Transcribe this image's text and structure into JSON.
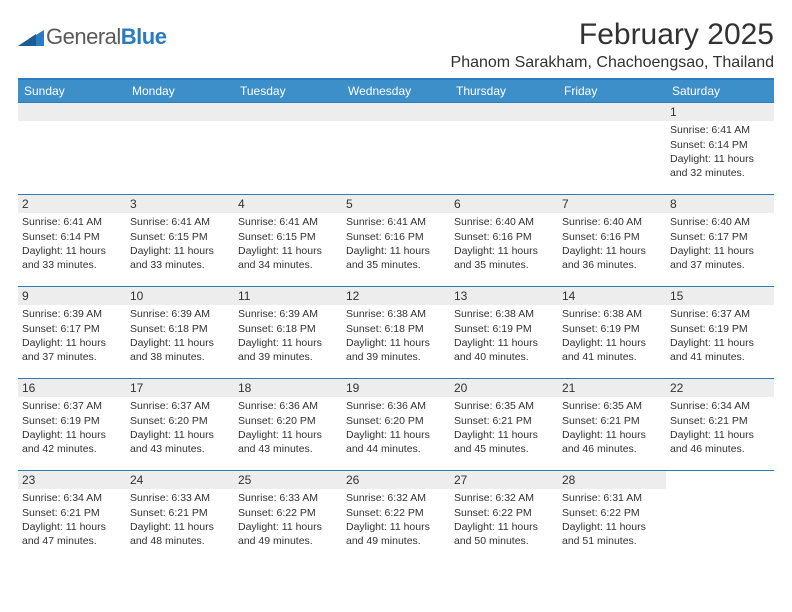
{
  "logo": {
    "word1": "General",
    "word2": "Blue"
  },
  "header": {
    "title": "February 2025",
    "location": "Phanom Sarakham, Chachoengsao, Thailand"
  },
  "colors": {
    "accent": "#3d8fc9",
    "rule": "#2b7bbf",
    "bar": "#ededed",
    "text": "#323232"
  },
  "weekdays": [
    "Sunday",
    "Monday",
    "Tuesday",
    "Wednesday",
    "Thursday",
    "Friday",
    "Saturday"
  ],
  "weeks": [
    [
      null,
      null,
      null,
      null,
      null,
      null,
      {
        "n": "1",
        "sr": "Sunrise: 6:41 AM",
        "ss": "Sunset: 6:14 PM",
        "dl": "Daylight: 11 hours and 32 minutes."
      }
    ],
    [
      {
        "n": "2",
        "sr": "Sunrise: 6:41 AM",
        "ss": "Sunset: 6:14 PM",
        "dl": "Daylight: 11 hours and 33 minutes."
      },
      {
        "n": "3",
        "sr": "Sunrise: 6:41 AM",
        "ss": "Sunset: 6:15 PM",
        "dl": "Daylight: 11 hours and 33 minutes."
      },
      {
        "n": "4",
        "sr": "Sunrise: 6:41 AM",
        "ss": "Sunset: 6:15 PM",
        "dl": "Daylight: 11 hours and 34 minutes."
      },
      {
        "n": "5",
        "sr": "Sunrise: 6:41 AM",
        "ss": "Sunset: 6:16 PM",
        "dl": "Daylight: 11 hours and 35 minutes."
      },
      {
        "n": "6",
        "sr": "Sunrise: 6:40 AM",
        "ss": "Sunset: 6:16 PM",
        "dl": "Daylight: 11 hours and 35 minutes."
      },
      {
        "n": "7",
        "sr": "Sunrise: 6:40 AM",
        "ss": "Sunset: 6:16 PM",
        "dl": "Daylight: 11 hours and 36 minutes."
      },
      {
        "n": "8",
        "sr": "Sunrise: 6:40 AM",
        "ss": "Sunset: 6:17 PM",
        "dl": "Daylight: 11 hours and 37 minutes."
      }
    ],
    [
      {
        "n": "9",
        "sr": "Sunrise: 6:39 AM",
        "ss": "Sunset: 6:17 PM",
        "dl": "Daylight: 11 hours and 37 minutes."
      },
      {
        "n": "10",
        "sr": "Sunrise: 6:39 AM",
        "ss": "Sunset: 6:18 PM",
        "dl": "Daylight: 11 hours and 38 minutes."
      },
      {
        "n": "11",
        "sr": "Sunrise: 6:39 AM",
        "ss": "Sunset: 6:18 PM",
        "dl": "Daylight: 11 hours and 39 minutes."
      },
      {
        "n": "12",
        "sr": "Sunrise: 6:38 AM",
        "ss": "Sunset: 6:18 PM",
        "dl": "Daylight: 11 hours and 39 minutes."
      },
      {
        "n": "13",
        "sr": "Sunrise: 6:38 AM",
        "ss": "Sunset: 6:19 PM",
        "dl": "Daylight: 11 hours and 40 minutes."
      },
      {
        "n": "14",
        "sr": "Sunrise: 6:38 AM",
        "ss": "Sunset: 6:19 PM",
        "dl": "Daylight: 11 hours and 41 minutes."
      },
      {
        "n": "15",
        "sr": "Sunrise: 6:37 AM",
        "ss": "Sunset: 6:19 PM",
        "dl": "Daylight: 11 hours and 41 minutes."
      }
    ],
    [
      {
        "n": "16",
        "sr": "Sunrise: 6:37 AM",
        "ss": "Sunset: 6:19 PM",
        "dl": "Daylight: 11 hours and 42 minutes."
      },
      {
        "n": "17",
        "sr": "Sunrise: 6:37 AM",
        "ss": "Sunset: 6:20 PM",
        "dl": "Daylight: 11 hours and 43 minutes."
      },
      {
        "n": "18",
        "sr": "Sunrise: 6:36 AM",
        "ss": "Sunset: 6:20 PM",
        "dl": "Daylight: 11 hours and 43 minutes."
      },
      {
        "n": "19",
        "sr": "Sunrise: 6:36 AM",
        "ss": "Sunset: 6:20 PM",
        "dl": "Daylight: 11 hours and 44 minutes."
      },
      {
        "n": "20",
        "sr": "Sunrise: 6:35 AM",
        "ss": "Sunset: 6:21 PM",
        "dl": "Daylight: 11 hours and 45 minutes."
      },
      {
        "n": "21",
        "sr": "Sunrise: 6:35 AM",
        "ss": "Sunset: 6:21 PM",
        "dl": "Daylight: 11 hours and 46 minutes."
      },
      {
        "n": "22",
        "sr": "Sunrise: 6:34 AM",
        "ss": "Sunset: 6:21 PM",
        "dl": "Daylight: 11 hours and 46 minutes."
      }
    ],
    [
      {
        "n": "23",
        "sr": "Sunrise: 6:34 AM",
        "ss": "Sunset: 6:21 PM",
        "dl": "Daylight: 11 hours and 47 minutes."
      },
      {
        "n": "24",
        "sr": "Sunrise: 6:33 AM",
        "ss": "Sunset: 6:21 PM",
        "dl": "Daylight: 11 hours and 48 minutes."
      },
      {
        "n": "25",
        "sr": "Sunrise: 6:33 AM",
        "ss": "Sunset: 6:22 PM",
        "dl": "Daylight: 11 hours and 49 minutes."
      },
      {
        "n": "26",
        "sr": "Sunrise: 6:32 AM",
        "ss": "Sunset: 6:22 PM",
        "dl": "Daylight: 11 hours and 49 minutes."
      },
      {
        "n": "27",
        "sr": "Sunrise: 6:32 AM",
        "ss": "Sunset: 6:22 PM",
        "dl": "Daylight: 11 hours and 50 minutes."
      },
      {
        "n": "28",
        "sr": "Sunrise: 6:31 AM",
        "ss": "Sunset: 6:22 PM",
        "dl": "Daylight: 11 hours and 51 minutes."
      },
      null
    ]
  ]
}
